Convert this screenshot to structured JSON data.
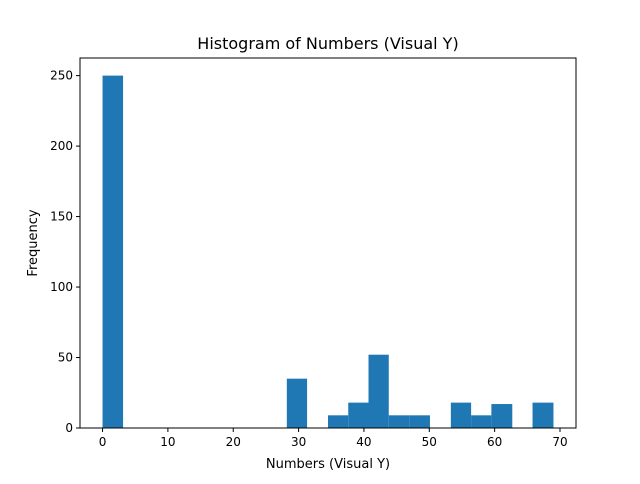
{
  "chart_data": {
    "type": "bar",
    "title": "Histogram of Numbers (Visual Y)",
    "xlabel": "Numbers (Visual Y)",
    "ylabel": "Frequency",
    "xlim": [
      -3.45,
      72.45
    ],
    "ylim": [
      0,
      262.5
    ],
    "xticks": [
      0,
      10,
      20,
      30,
      40,
      50,
      60,
      70
    ],
    "yticks": [
      0,
      50,
      100,
      150,
      200,
      250
    ],
    "bin_width": 3.14,
    "bins": [
      {
        "x0": 0.0,
        "x1": 3.14,
        "count": 250
      },
      {
        "x0": 28.2,
        "x1": 31.3,
        "count": 35
      },
      {
        "x0": 34.5,
        "x1": 37.6,
        "count": 9
      },
      {
        "x0": 37.6,
        "x1": 40.7,
        "count": 18
      },
      {
        "x0": 40.7,
        "x1": 43.8,
        "count": 52
      },
      {
        "x0": 43.8,
        "x1": 47.0,
        "count": 9
      },
      {
        "x0": 47.0,
        "x1": 50.1,
        "count": 9
      },
      {
        "x0": 53.3,
        "x1": 56.4,
        "count": 18
      },
      {
        "x0": 56.4,
        "x1": 59.5,
        "count": 9
      },
      {
        "x0": 59.5,
        "x1": 62.7,
        "count": 17
      },
      {
        "x0": 65.8,
        "x1": 69.0,
        "count": 18
      }
    ],
    "grid": false,
    "legend": "none",
    "bar_color": "#1f77b4"
  }
}
